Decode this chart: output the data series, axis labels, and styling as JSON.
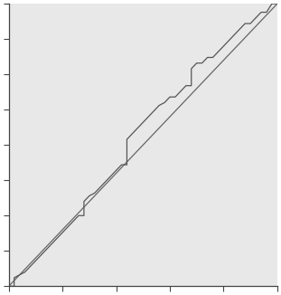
{
  "title": "",
  "xlabel": "",
  "ylabel": "",
  "xlim": [
    0,
    1
  ],
  "ylim": [
    0,
    1
  ],
  "background_color": "#e8e8e8",
  "spine_color": "#444444",
  "line_color": "#555555",
  "ref_line_color": "#666666",
  "xticks": [
    0.0,
    0.2,
    0.4,
    0.6,
    0.8,
    1.0
  ],
  "yticks": [
    0.0,
    0.125,
    0.25,
    0.375,
    0.5,
    0.625,
    0.75,
    0.875,
    1.0
  ],
  "empirical_x": [
    0.0,
    0.02,
    0.02,
    0.06,
    0.08,
    0.1,
    0.12,
    0.14,
    0.16,
    0.18,
    0.2,
    0.22,
    0.24,
    0.26,
    0.28,
    0.28,
    0.3,
    0.32,
    0.34,
    0.36,
    0.38,
    0.4,
    0.42,
    0.44,
    0.44,
    0.46,
    0.48,
    0.5,
    0.52,
    0.54,
    0.56,
    0.58,
    0.6,
    0.62,
    0.64,
    0.66,
    0.68,
    0.68,
    0.7,
    0.72,
    0.74,
    0.76,
    0.78,
    0.8,
    0.82,
    0.84,
    0.86,
    0.88,
    0.9,
    0.92,
    0.94,
    0.96,
    0.98,
    1.0
  ],
  "empirical_y": [
    0.0,
    0.0,
    0.03,
    0.05,
    0.07,
    0.09,
    0.11,
    0.13,
    0.15,
    0.17,
    0.19,
    0.21,
    0.23,
    0.25,
    0.25,
    0.3,
    0.32,
    0.33,
    0.35,
    0.37,
    0.39,
    0.41,
    0.43,
    0.43,
    0.52,
    0.54,
    0.56,
    0.58,
    0.6,
    0.62,
    0.64,
    0.65,
    0.67,
    0.67,
    0.69,
    0.71,
    0.71,
    0.77,
    0.79,
    0.79,
    0.81,
    0.81,
    0.83,
    0.85,
    0.87,
    0.89,
    0.91,
    0.93,
    0.93,
    0.95,
    0.97,
    0.97,
    1.0,
    1.0
  ]
}
